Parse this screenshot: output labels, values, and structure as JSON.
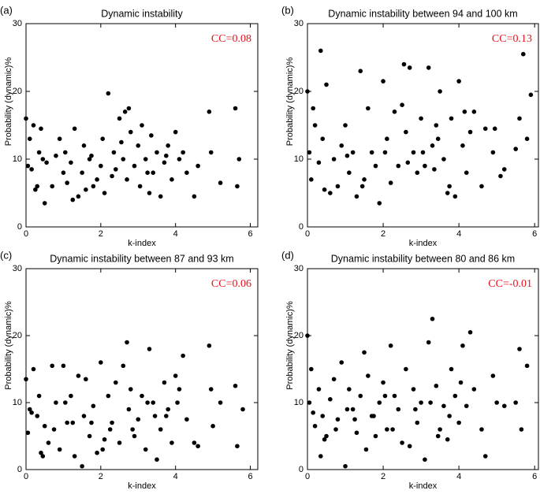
{
  "chart_data": [
    {
      "type": "scatter",
      "label": "(a)",
      "title": "Dynamic instability",
      "annotation": "CC=0.08",
      "annotation_color": "#e8101a",
      "x_label": "k-index",
      "y_label": "Probability (dynamic)%",
      "color": "#000000",
      "xlim": [
        0,
        6.2
      ],
      "ylim": [
        0,
        30
      ],
      "xticks": [
        0,
        2,
        4,
        6
      ],
      "yticks": [
        0,
        10,
        20,
        30
      ],
      "x": [
        0.0,
        0.05,
        0.1,
        0.15,
        0.2,
        0.3,
        0.35,
        0.4,
        0.5,
        0.55,
        0.7,
        0.8,
        0.9,
        1.0,
        1.05,
        1.1,
        1.2,
        1.3,
        1.4,
        1.5,
        1.55,
        1.6,
        1.7,
        1.8,
        1.9,
        2.0,
        2.05,
        2.1,
        2.2,
        2.3,
        2.35,
        2.4,
        2.5,
        2.55,
        2.6,
        2.7,
        2.75,
        2.8,
        2.9,
        3.0,
        3.05,
        3.1,
        3.2,
        3.3,
        3.35,
        3.4,
        3.5,
        3.6,
        3.7,
        3.8,
        3.9,
        4.0,
        4.1,
        4.2,
        4.3,
        4.5,
        4.6,
        4.9,
        4.95,
        5.2,
        5.6,
        5.7,
        5.65,
        0.25,
        1.75,
        2.65,
        3.25,
        3.75,
        1.25,
        0.45
      ],
      "values": [
        16,
        9,
        13,
        8.5,
        15,
        6,
        11,
        14.5,
        3.5,
        9.5,
        6,
        10.5,
        13,
        8,
        11,
        6.5,
        9.5,
        14.5,
        4.5,
        8,
        12,
        5.5,
        10,
        6,
        7,
        9,
        13,
        5,
        19.7,
        7.5,
        11,
        8.5,
        16,
        12.5,
        10,
        7,
        17.5,
        14,
        9,
        12,
        6,
        15,
        10,
        5,
        13.5,
        8,
        11,
        4.5,
        9.5,
        12,
        7,
        14,
        10,
        11,
        8,
        4.5,
        9,
        17,
        11,
        6.5,
        17.5,
        10,
        6,
        5.5,
        10.5,
        17,
        8,
        10.5,
        4,
        10
      ]
    },
    {
      "type": "scatter",
      "label": "(b)",
      "title": "Dynamic instability between 94 and 100 km",
      "annotation": "CC=0.13",
      "annotation_color": "#e8101a",
      "x_label": "k-index",
      "y_label": "Probability (dynamic)%",
      "color": "#000000",
      "xlim": [
        0,
        6.1
      ],
      "ylim": [
        0,
        30
      ],
      "xticks": [
        0,
        2,
        4,
        6
      ],
      "yticks": [
        0,
        10,
        20,
        30
      ],
      "x": [
        0.0,
        0.05,
        0.1,
        0.2,
        0.3,
        0.35,
        0.4,
        0.5,
        0.6,
        0.7,
        0.8,
        0.9,
        1.0,
        1.1,
        1.2,
        1.3,
        1.4,
        1.5,
        1.6,
        1.7,
        1.8,
        1.9,
        2.0,
        2.1,
        2.2,
        2.3,
        2.4,
        2.5,
        2.55,
        2.6,
        2.7,
        2.8,
        2.9,
        3.0,
        3.1,
        3.2,
        3.3,
        3.35,
        3.4,
        3.5,
        3.6,
        3.7,
        3.8,
        3.9,
        4.0,
        4.1,
        4.2,
        4.3,
        4.4,
        4.6,
        4.7,
        4.9,
        4.95,
        5.1,
        5.2,
        5.5,
        5.6,
        5.7,
        5.8,
        5.9,
        0.15,
        1.05,
        1.45,
        2.05,
        2.65,
        3.05,
        3.45,
        3.75,
        4.15,
        0.45
      ],
      "values": [
        20,
        11,
        7,
        15,
        9.5,
        26,
        13,
        21,
        5,
        10,
        6,
        12,
        15,
        8,
        11,
        4.5,
        23,
        7,
        17.5,
        11,
        9,
        3.5,
        21.5,
        13,
        6.5,
        17,
        9,
        18,
        24,
        14,
        23.5,
        11,
        8,
        16,
        9,
        23.5,
        12,
        8.5,
        15,
        20,
        10,
        5,
        16,
        4.5,
        21.5,
        12,
        8,
        14,
        17,
        6,
        14.5,
        11,
        14.5,
        7.5,
        8.5,
        11.5,
        16,
        25.5,
        13,
        19.5,
        17.5,
        10.5,
        6,
        11,
        9.5,
        11,
        13,
        6,
        17,
        5.5
      ]
    },
    {
      "type": "scatter",
      "label": "(c)",
      "title": "Dynamic instability between 87 and 93 km",
      "annotation": "CC=0.06",
      "annotation_color": "#e8101a",
      "x_label": "k-index",
      "y_label": "Probability (dynamic)%",
      "color": "#000000",
      "xlim": [
        0,
        6.2
      ],
      "ylim": [
        0,
        30
      ],
      "xticks": [
        0,
        2,
        4,
        6
      ],
      "yticks": [
        0,
        10,
        20,
        30
      ],
      "x": [
        0.0,
        0.05,
        0.1,
        0.2,
        0.3,
        0.35,
        0.4,
        0.5,
        0.6,
        0.7,
        0.8,
        0.9,
        1.0,
        1.1,
        1.2,
        1.3,
        1.4,
        1.5,
        1.55,
        1.6,
        1.7,
        1.8,
        1.9,
        2.0,
        2.1,
        2.2,
        2.3,
        2.4,
        2.5,
        2.6,
        2.7,
        2.75,
        2.8,
        2.9,
        3.0,
        3.1,
        3.2,
        3.3,
        3.4,
        3.5,
        3.6,
        3.7,
        3.8,
        3.9,
        4.0,
        4.1,
        4.2,
        4.3,
        4.5,
        4.6,
        4.9,
        4.95,
        5.2,
        5.6,
        5.65,
        5.8,
        0.15,
        1.25,
        2.25,
        3.25,
        3.75,
        2.05,
        1.05,
        0.45,
        4.05,
        3.45,
        2.85,
        1.75,
        0.75,
        5.0
      ],
      "values": [
        13.5,
        5.5,
        9,
        15,
        8,
        11,
        2.5,
        6.5,
        4,
        15.5,
        10,
        3,
        15.5,
        7,
        11,
        2,
        14,
        0.5,
        8,
        13.5,
        5,
        9.5,
        2.5,
        16,
        4.5,
        11,
        7,
        13,
        4,
        15.5,
        19,
        9,
        12,
        5,
        7.5,
        11,
        3,
        18,
        10,
        1.5,
        6,
        13,
        9,
        4,
        14,
        12,
        17,
        7.5,
        4,
        3.5,
        18.5,
        12,
        10,
        12.5,
        3.5,
        9,
        8.5,
        7,
        6,
        10,
        8,
        3,
        10,
        2,
        10,
        8,
        6,
        7,
        6,
        6.5
      ]
    },
    {
      "type": "scatter",
      "label": "(d)",
      "title": "Dynamic instability between 80 and 86 km",
      "annotation": "CC=-0.01",
      "annotation_color": "#e8101a",
      "x_label": "k-index",
      "y_label": "Probability (dynamic)%",
      "color": "#000000",
      "xlim": [
        0,
        6.1
      ],
      "ylim": [
        0,
        30
      ],
      "xticks": [
        0,
        2,
        4,
        6
      ],
      "yticks": [
        0,
        10,
        20,
        30
      ],
      "x": [
        0.0,
        0.05,
        0.1,
        0.2,
        0.3,
        0.35,
        0.4,
        0.5,
        0.6,
        0.7,
        0.8,
        0.9,
        1.0,
        1.1,
        1.2,
        1.3,
        1.4,
        1.5,
        1.55,
        1.6,
        1.7,
        1.8,
        1.9,
        2.0,
        2.1,
        2.2,
        2.3,
        2.4,
        2.5,
        2.6,
        2.7,
        2.8,
        2.9,
        3.0,
        3.1,
        3.2,
        3.3,
        3.4,
        3.5,
        3.6,
        3.7,
        3.8,
        3.9,
        4.0,
        4.1,
        4.2,
        4.3,
        4.4,
        4.6,
        4.7,
        4.9,
        5.0,
        5.2,
        5.6,
        5.65,
        5.8,
        0.15,
        1.25,
        2.25,
        3.25,
        3.75,
        2.05,
        1.05,
        0.45,
        4.05,
        3.45,
        2.85,
        1.75,
        0.75,
        5.5
      ],
      "values": [
        20,
        10,
        15,
        6.5,
        12,
        2,
        8,
        5,
        10.5,
        13.5,
        7.5,
        16,
        0.5,
        12,
        9,
        5.5,
        11,
        17.5,
        3,
        14,
        8,
        5,
        10,
        13,
        6,
        18.5,
        11,
        9,
        4,
        15,
        3.5,
        12,
        7,
        10,
        1.5,
        19,
        22.5,
        12.5,
        6,
        9.5,
        4.5,
        15,
        11,
        7,
        18.5,
        9.5,
        20.5,
        12,
        6,
        2,
        14,
        10,
        9.5,
        18,
        6,
        15.5,
        8.5,
        7.5,
        6,
        10,
        8,
        11,
        9,
        4.5,
        13,
        5,
        9,
        8,
        6,
        10
      ]
    }
  ]
}
